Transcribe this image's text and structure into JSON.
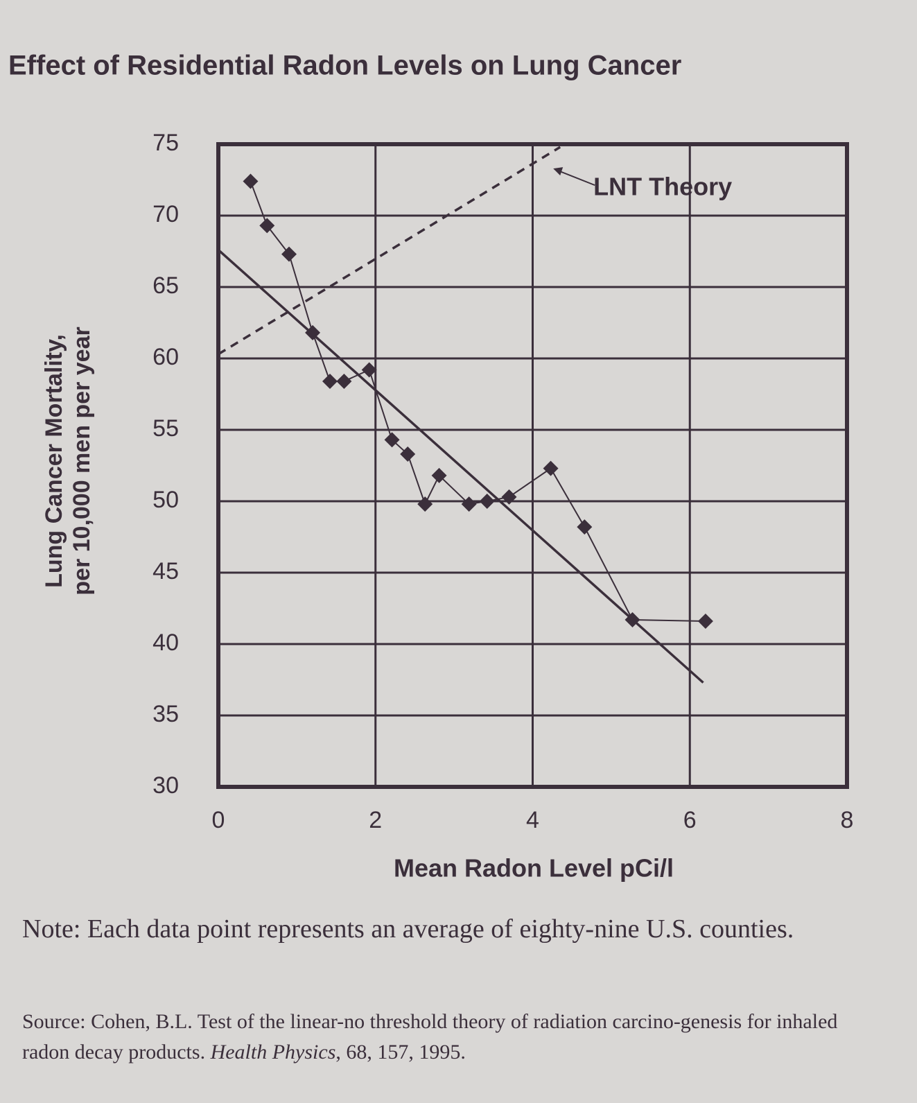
{
  "chart_data": {
    "type": "line",
    "title": "Effect of Residential Radon Levels on Lung Cancer",
    "xlabel": "Mean Radon Level pCi/l",
    "ylabel": [
      "Lung Cancer Mortality,",
      "per 10,000 men per year"
    ],
    "xlim": [
      0,
      8
    ],
    "xticks": [
      0,
      2,
      4,
      6,
      8
    ],
    "ylim": [
      30,
      75
    ],
    "yticks": [
      30,
      35,
      40,
      45,
      50,
      55,
      60,
      65,
      70,
      75
    ],
    "grid": true,
    "color": "#3b2f3b",
    "series": [
      {
        "x": [
          0.41,
          0.62,
          0.9,
          1.2,
          1.42,
          1.6,
          1.92,
          2.21,
          2.41,
          2.63,
          2.81,
          3.19,
          3.42,
          3.7,
          4.23,
          4.66,
          5.27,
          6.2
        ],
        "values": [
          72.4,
          69.3,
          67.3,
          61.8,
          58.4,
          58.4,
          59.2,
          54.3,
          53.3,
          49.8,
          51.8,
          49.8,
          50.0,
          50.3,
          52.3,
          48.2,
          41.7,
          41.6
        ],
        "markers": true
      },
      {
        "x": [
          0,
          6.17
        ],
        "values": [
          67.6,
          37.3
        ]
      },
      {
        "name": "LNT Theory",
        "x": [
          0,
          4.35
        ],
        "values": [
          60.3,
          74.8
        ],
        "dashed": true
      }
    ],
    "note": "Note: Each data point represents an average of eighty-nine U.S. counties.",
    "source": {
      "text": "Source: Cohen, B.L. Test of the linear-no threshold theory of radiation carcino-genesis for inhaled radon decay products.",
      "journal": "Health Physics",
      "details": ", 68, 157, 1995."
    }
  }
}
